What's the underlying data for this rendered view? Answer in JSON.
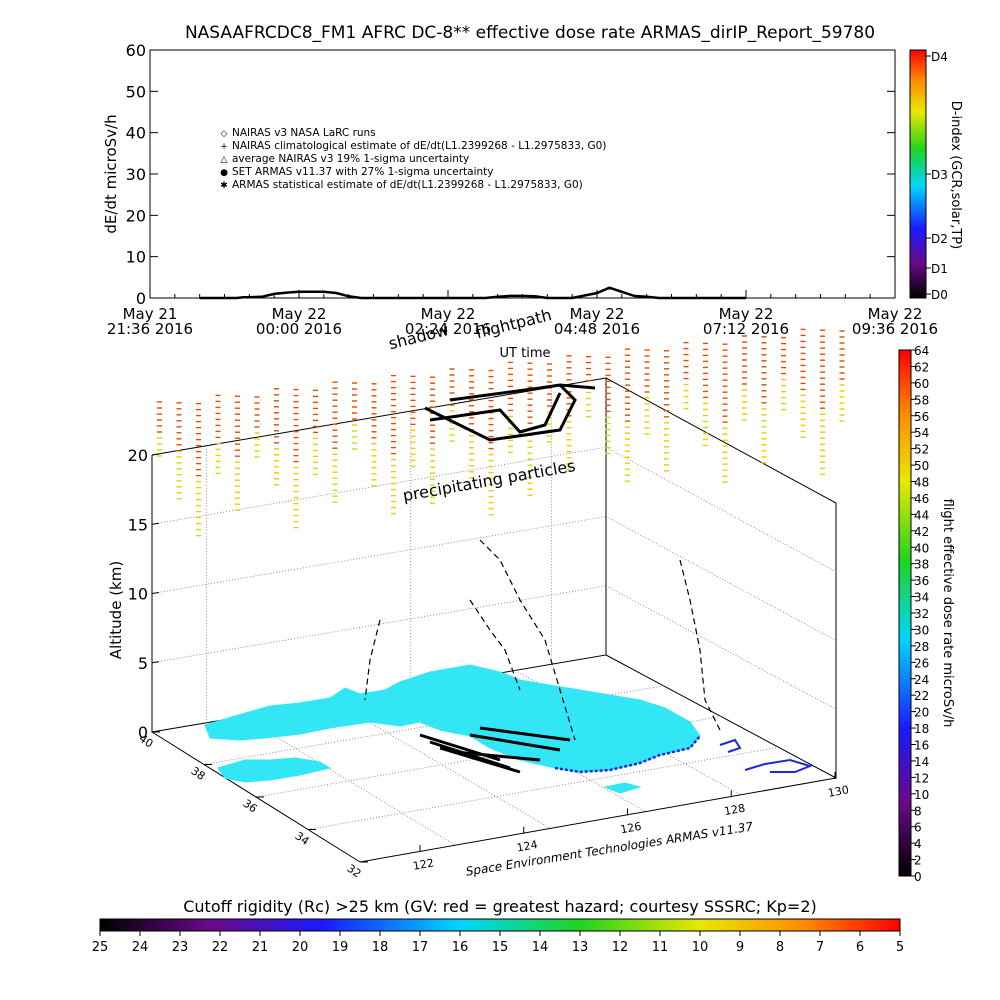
{
  "title": "NASAAFRCDC8_FM1 AFRC DC-8** effective dose rate ARMAS_dirIP_Report_59780",
  "colors": {
    "land": "#33e6f5",
    "coast": "#1a2bd9",
    "flight": "#000000",
    "particle_low": "#e6d200",
    "particle_high": "#e84a00"
  },
  "chart_data": [
    {
      "type": "line",
      "title": "NASAAFRCDC8_FM1 AFRC DC-8** effective dose rate ARMAS_dirIP_Report_59780",
      "xlabel": "UT time",
      "ylabel": "dE/dt microSv/h",
      "ylim": [
        0,
        60
      ],
      "yticks": [
        "0",
        "10",
        "20",
        "30",
        "40",
        "50",
        "60"
      ],
      "xticks": [
        {
          "date": "May 21",
          "time": "21:36 2016"
        },
        {
          "date": "May 22",
          "time": "00:00 2016"
        },
        {
          "date": "May 22",
          "time": "02:24 2016"
        },
        {
          "date": "May 22",
          "time": "04:48 2016"
        },
        {
          "date": "May 22",
          "time": "07:12 2016"
        },
        {
          "date": "May 22",
          "time": "09:36 2016"
        }
      ],
      "legend": [
        {
          "symbol": "◇",
          "label": "NAIRAS v3 NASA LaRC runs"
        },
        {
          "symbol": "+",
          "label": "NAIRAS climatological estimate of dE/dt(L1.2399268 - L1.2975833, G0)"
        },
        {
          "symbol": "△",
          "label": "average NAIRAS v3 19% 1-sigma uncertainty"
        },
        {
          "symbol": "●",
          "label": "SET ARMAS v11.37 with 27% 1-sigma uncertainty"
        },
        {
          "symbol": "✱",
          "label": "ARMAS statistical estimate of dE/dt(L1.2399268 - L1.2975833, G0)"
        }
      ],
      "legend_position": "upper-left",
      "series": [
        {
          "name": "ARMAS statistical estimate of dE/dt(L1.2399268 - L1.2975833, G0)",
          "x_hours": [
            0.8,
            1.0,
            1.2,
            1.4,
            1.5,
            1.6,
            1.8,
            2.0,
            2.2,
            2.4,
            2.6,
            2.8,
            3.0,
            3.2,
            3.4,
            3.6,
            3.8,
            4.0,
            4.2,
            4.4,
            4.6,
            4.8,
            5.0,
            5.2,
            5.4,
            5.6,
            5.8,
            6.0,
            6.2,
            6.4,
            6.6,
            6.8,
            7.0,
            7.2,
            7.4,
            7.6,
            7.8,
            8.0,
            8.2,
            8.4,
            8.6,
            8.8,
            9.0,
            9.2,
            9.4,
            9.6
          ],
          "values": [
            0,
            0,
            0,
            0,
            0.2,
            0.2,
            0.3,
            1,
            1.3,
            1.5,
            1.5,
            1.5,
            1.2,
            0.4,
            0,
            0,
            0,
            0,
            0,
            0,
            0,
            0,
            0,
            0,
            0,
            0.3,
            0.5,
            0.5,
            0.4,
            0,
            0,
            0,
            0.6,
            1.2,
            2.5,
            1.5,
            0.5,
            0.3,
            0,
            0,
            0,
            0,
            0,
            0,
            0,
            0
          ]
        }
      ],
      "right_axis": {
        "label": "D-index (GCR,solar,TP)",
        "ticks": [
          "D0",
          "D1",
          "D2",
          "D3",
          "D4"
        ]
      }
    },
    {
      "type": "scatter",
      "title": "",
      "xlabel": "",
      "ylabel": "Altitude (km)",
      "zlim": [
        0,
        20
      ],
      "zticks": [
        "0",
        "5",
        "10",
        "15",
        "20"
      ],
      "lon_ticks": [
        "122",
        "124",
        "126",
        "128",
        "130"
      ],
      "lat_ticks": [
        "32",
        "34",
        "36",
        "38",
        "40"
      ],
      "annotations": [
        "flightpath",
        "shadow",
        "precipitating particles"
      ],
      "credit": "Space Environment Technologies ARMAS v11.37",
      "right_colorbar": {
        "label": "flight effective dose rate microSv/h",
        "ticks": [
          "0",
          "2",
          "4",
          "6",
          "8",
          "10",
          "12",
          "14",
          "16",
          "18",
          "20",
          "22",
          "24",
          "26",
          "28",
          "30",
          "32",
          "34",
          "36",
          "38",
          "40",
          "42",
          "44",
          "46",
          "48",
          "50",
          "52",
          "54",
          "56",
          "58",
          "60",
          "62",
          "64"
        ]
      },
      "bottom_colorbar": {
        "label": "Cutoff rigidity (Rc) >25 km (GV: red = greatest hazard; courtesy SSSRC; Kp=2)",
        "ticks": [
          "25",
          "24",
          "23",
          "22",
          "21",
          "20",
          "19",
          "18",
          "17",
          "16",
          "15",
          "14",
          "13",
          "12",
          "11",
          "10",
          "9",
          "8",
          "7",
          "6",
          "5"
        ]
      }
    }
  ]
}
